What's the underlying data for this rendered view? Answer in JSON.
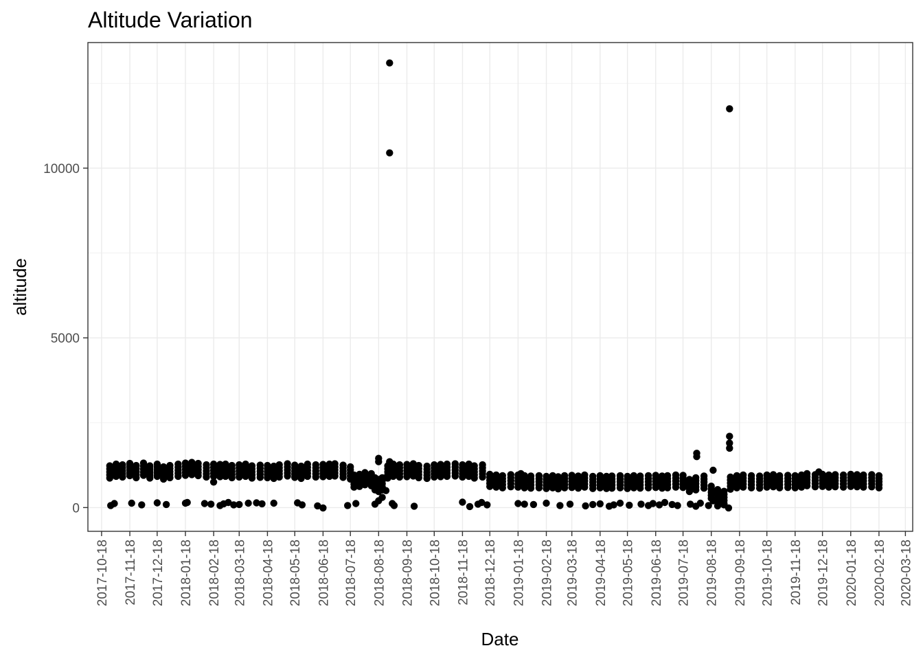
{
  "chart_data": {
    "type": "scatter",
    "title": "Altitude Variation",
    "xlabel": "Date",
    "ylabel": "altitude",
    "xlim": [
      "2017-10-03",
      "2020-03-26"
    ],
    "ylim": [
      -700,
      13700
    ],
    "x_ticks": [
      "2017-10-18",
      "2017-11-18",
      "2017-12-18",
      "2018-01-18",
      "2018-02-18",
      "2018-03-18",
      "2018-04-18",
      "2018-05-18",
      "2018-06-18",
      "2018-07-18",
      "2018-08-18",
      "2018-09-18",
      "2018-10-18",
      "2018-11-18",
      "2018-12-18",
      "2019-01-18",
      "2019-02-18",
      "2019-03-18",
      "2019-04-18",
      "2019-05-18",
      "2019-06-18",
      "2019-07-18",
      "2019-08-18",
      "2019-09-18",
      "2019-10-18",
      "2019-11-18",
      "2019-12-18",
      "2020-01-18",
      "2020-02-18",
      "2020-03-18"
    ],
    "y_ticks": [
      0,
      5000,
      10000
    ],
    "y_tick_labels": [
      "0",
      "5000",
      "10000"
    ],
    "grid": true,
    "point_color": "#000000",
    "series": [
      {
        "main_band": [
          [
            "2017-10-27",
            1050
          ],
          [
            "2017-11-03",
            1100
          ],
          [
            "2017-11-10",
            1080
          ],
          [
            "2017-11-18",
            1120
          ],
          [
            "2017-11-25",
            1060
          ],
          [
            "2017-12-03",
            1130
          ],
          [
            "2017-12-10",
            1050
          ],
          [
            "2017-12-18",
            1100
          ],
          [
            "2017-12-25",
            1020
          ],
          [
            "2018-01-01",
            1060
          ],
          [
            "2018-01-10",
            1100
          ],
          [
            "2018-01-18",
            1130
          ],
          [
            "2018-01-25",
            1150
          ],
          [
            "2018-02-01",
            1120
          ],
          [
            "2018-02-10",
            1080
          ],
          [
            "2018-02-18",
            1100
          ],
          [
            "2018-02-25",
            1090
          ],
          [
            "2018-03-03",
            1100
          ],
          [
            "2018-03-10",
            1060
          ],
          [
            "2018-03-18",
            1080
          ],
          [
            "2018-03-25",
            1100
          ],
          [
            "2018-04-01",
            1050
          ],
          [
            "2018-04-10",
            1070
          ],
          [
            "2018-04-18",
            1060
          ],
          [
            "2018-04-25",
            1040
          ],
          [
            "2018-05-01",
            1080
          ],
          [
            "2018-05-10",
            1110
          ],
          [
            "2018-05-18",
            1070
          ],
          [
            "2018-05-25",
            1040
          ],
          [
            "2018-06-01",
            1100
          ],
          [
            "2018-06-10",
            1080
          ],
          [
            "2018-06-18",
            1090
          ],
          [
            "2018-06-25",
            1100
          ],
          [
            "2018-07-01",
            1110
          ],
          [
            "2018-07-10",
            1070
          ],
          [
            "2018-07-18",
            1020
          ],
          [
            "2018-07-22",
            780
          ],
          [
            "2018-07-28",
            800
          ],
          [
            "2018-08-03",
            850
          ],
          [
            "2018-08-10",
            820
          ],
          [
            "2018-08-14",
            700
          ],
          [
            "2018-08-18",
            650
          ],
          [
            "2018-08-22",
            700
          ],
          [
            "2018-08-28",
            1050
          ],
          [
            "2018-09-03",
            1100
          ],
          [
            "2018-09-10",
            1080
          ],
          [
            "2018-09-18",
            1090
          ],
          [
            "2018-09-25",
            1110
          ],
          [
            "2018-10-01",
            1060
          ],
          [
            "2018-10-10",
            1040
          ],
          [
            "2018-10-18",
            1080
          ],
          [
            "2018-10-25",
            1090
          ],
          [
            "2018-11-01",
            1100
          ],
          [
            "2018-11-10",
            1110
          ],
          [
            "2018-11-18",
            1080
          ],
          [
            "2018-11-25",
            1100
          ],
          [
            "2018-12-01",
            1050
          ],
          [
            "2018-12-10",
            1080
          ],
          [
            "2018-12-18",
            800
          ],
          [
            "2018-12-25",
            780
          ],
          [
            "2019-01-01",
            760
          ],
          [
            "2019-01-10",
            790
          ],
          [
            "2019-01-18",
            780
          ],
          [
            "2019-01-25",
            760
          ],
          [
            "2019-02-01",
            750
          ],
          [
            "2019-02-10",
            760
          ],
          [
            "2019-02-18",
            740
          ],
          [
            "2019-02-25",
            760
          ],
          [
            "2019-03-03",
            730
          ],
          [
            "2019-03-10",
            760
          ],
          [
            "2019-03-18",
            770
          ],
          [
            "2019-03-25",
            750
          ],
          [
            "2019-04-01",
            780
          ],
          [
            "2019-04-10",
            740
          ],
          [
            "2019-04-18",
            760
          ],
          [
            "2019-04-25",
            740
          ],
          [
            "2019-05-01",
            750
          ],
          [
            "2019-05-10",
            760
          ],
          [
            "2019-05-18",
            740
          ],
          [
            "2019-05-25",
            760
          ],
          [
            "2019-06-01",
            750
          ],
          [
            "2019-06-10",
            760
          ],
          [
            "2019-06-18",
            770
          ],
          [
            "2019-06-25",
            750
          ],
          [
            "2019-07-01",
            760
          ],
          [
            "2019-07-10",
            780
          ],
          [
            "2019-07-18",
            770
          ],
          [
            "2019-07-25",
            650
          ],
          [
            "2019-08-01",
            700
          ],
          [
            "2019-08-10",
            750
          ],
          [
            "2019-08-18",
            450
          ],
          [
            "2019-08-25",
            350
          ],
          [
            "2019-09-01",
            300
          ],
          [
            "2019-09-08",
            720
          ],
          [
            "2019-09-15",
            760
          ],
          [
            "2019-09-22",
            780
          ],
          [
            "2019-10-01",
            760
          ],
          [
            "2019-10-10",
            750
          ],
          [
            "2019-10-18",
            780
          ],
          [
            "2019-10-25",
            790
          ],
          [
            "2019-11-01",
            760
          ],
          [
            "2019-11-10",
            770
          ],
          [
            "2019-11-18",
            760
          ],
          [
            "2019-11-25",
            780
          ],
          [
            "2019-12-01",
            820
          ],
          [
            "2019-12-10",
            790
          ],
          [
            "2019-12-18",
            800
          ],
          [
            "2019-12-25",
            780
          ],
          [
            "2020-01-01",
            790
          ],
          [
            "2020-01-10",
            780
          ],
          [
            "2020-01-18",
            800
          ],
          [
            "2020-01-25",
            790
          ],
          [
            "2020-02-01",
            780
          ],
          [
            "2020-02-10",
            790
          ],
          [
            "2020-02-18",
            760
          ]
        ],
        "low_points": [
          [
            "2017-10-28",
            60
          ],
          [
            "2017-11-01",
            120
          ],
          [
            "2017-11-20",
            130
          ],
          [
            "2017-12-01",
            80
          ],
          [
            "2017-12-18",
            140
          ],
          [
            "2017-12-28",
            90
          ],
          [
            "2018-01-18",
            130
          ],
          [
            "2018-01-20",
            150
          ],
          [
            "2018-02-08",
            120
          ],
          [
            "2018-02-15",
            100
          ],
          [
            "2018-02-25",
            60
          ],
          [
            "2018-03-01",
            110
          ],
          [
            "2018-03-06",
            150
          ],
          [
            "2018-03-12",
            80
          ],
          [
            "2018-03-18",
            90
          ],
          [
            "2018-03-28",
            130
          ],
          [
            "2018-04-06",
            140
          ],
          [
            "2018-04-12",
            110
          ],
          [
            "2018-04-25",
            130
          ],
          [
            "2018-05-21",
            140
          ],
          [
            "2018-05-26",
            80
          ],
          [
            "2018-06-12",
            50
          ],
          [
            "2018-06-18",
            -10
          ],
          [
            "2018-07-15",
            60
          ],
          [
            "2018-07-24",
            120
          ],
          [
            "2018-08-14",
            100
          ],
          [
            "2018-08-18",
            200
          ],
          [
            "2018-08-22",
            300
          ],
          [
            "2018-08-26",
            500
          ],
          [
            "2018-09-02",
            120
          ],
          [
            "2018-09-04",
            60
          ],
          [
            "2018-09-26",
            40
          ],
          [
            "2018-11-18",
            160
          ],
          [
            "2018-11-26",
            30
          ],
          [
            "2018-12-05",
            100
          ],
          [
            "2018-12-09",
            150
          ],
          [
            "2018-12-15",
            80
          ],
          [
            "2019-01-18",
            120
          ],
          [
            "2019-01-25",
            100
          ],
          [
            "2019-02-04",
            90
          ],
          [
            "2019-02-18",
            130
          ],
          [
            "2019-03-05",
            60
          ],
          [
            "2019-03-16",
            100
          ],
          [
            "2019-04-02",
            50
          ],
          [
            "2019-04-10",
            90
          ],
          [
            "2019-04-18",
            110
          ],
          [
            "2019-04-28",
            40
          ],
          [
            "2019-05-03",
            80
          ],
          [
            "2019-05-10",
            130
          ],
          [
            "2019-05-20",
            70
          ],
          [
            "2019-06-02",
            100
          ],
          [
            "2019-06-10",
            60
          ],
          [
            "2019-06-15",
            120
          ],
          [
            "2019-06-22",
            80
          ],
          [
            "2019-06-28",
            150
          ],
          [
            "2019-07-06",
            90
          ],
          [
            "2019-07-12",
            60
          ],
          [
            "2019-07-26",
            100
          ],
          [
            "2019-08-01",
            40
          ],
          [
            "2019-08-06",
            130
          ],
          [
            "2019-08-15",
            60
          ],
          [
            "2019-08-20",
            200
          ],
          [
            "2019-08-25",
            50
          ],
          [
            "2019-09-01",
            80
          ],
          [
            "2019-09-06",
            -10
          ]
        ],
        "outliers": [
          [
            "2018-08-30",
            13100
          ],
          [
            "2018-08-30",
            10450
          ],
          [
            "2019-09-07",
            11750
          ],
          [
            "2019-09-07",
            2100
          ],
          [
            "2019-09-07",
            1900
          ],
          [
            "2019-09-07",
            1750
          ],
          [
            "2018-08-18",
            1450
          ],
          [
            "2018-08-18",
            1350
          ],
          [
            "2018-08-30",
            1350
          ],
          [
            "2019-08-02",
            1600
          ],
          [
            "2019-08-02",
            1500
          ],
          [
            "2019-08-20",
            1100
          ],
          [
            "2019-01-21",
            1000
          ],
          [
            "2019-12-14",
            1050
          ],
          [
            "2018-02-18",
            750
          ]
        ]
      }
    ]
  }
}
